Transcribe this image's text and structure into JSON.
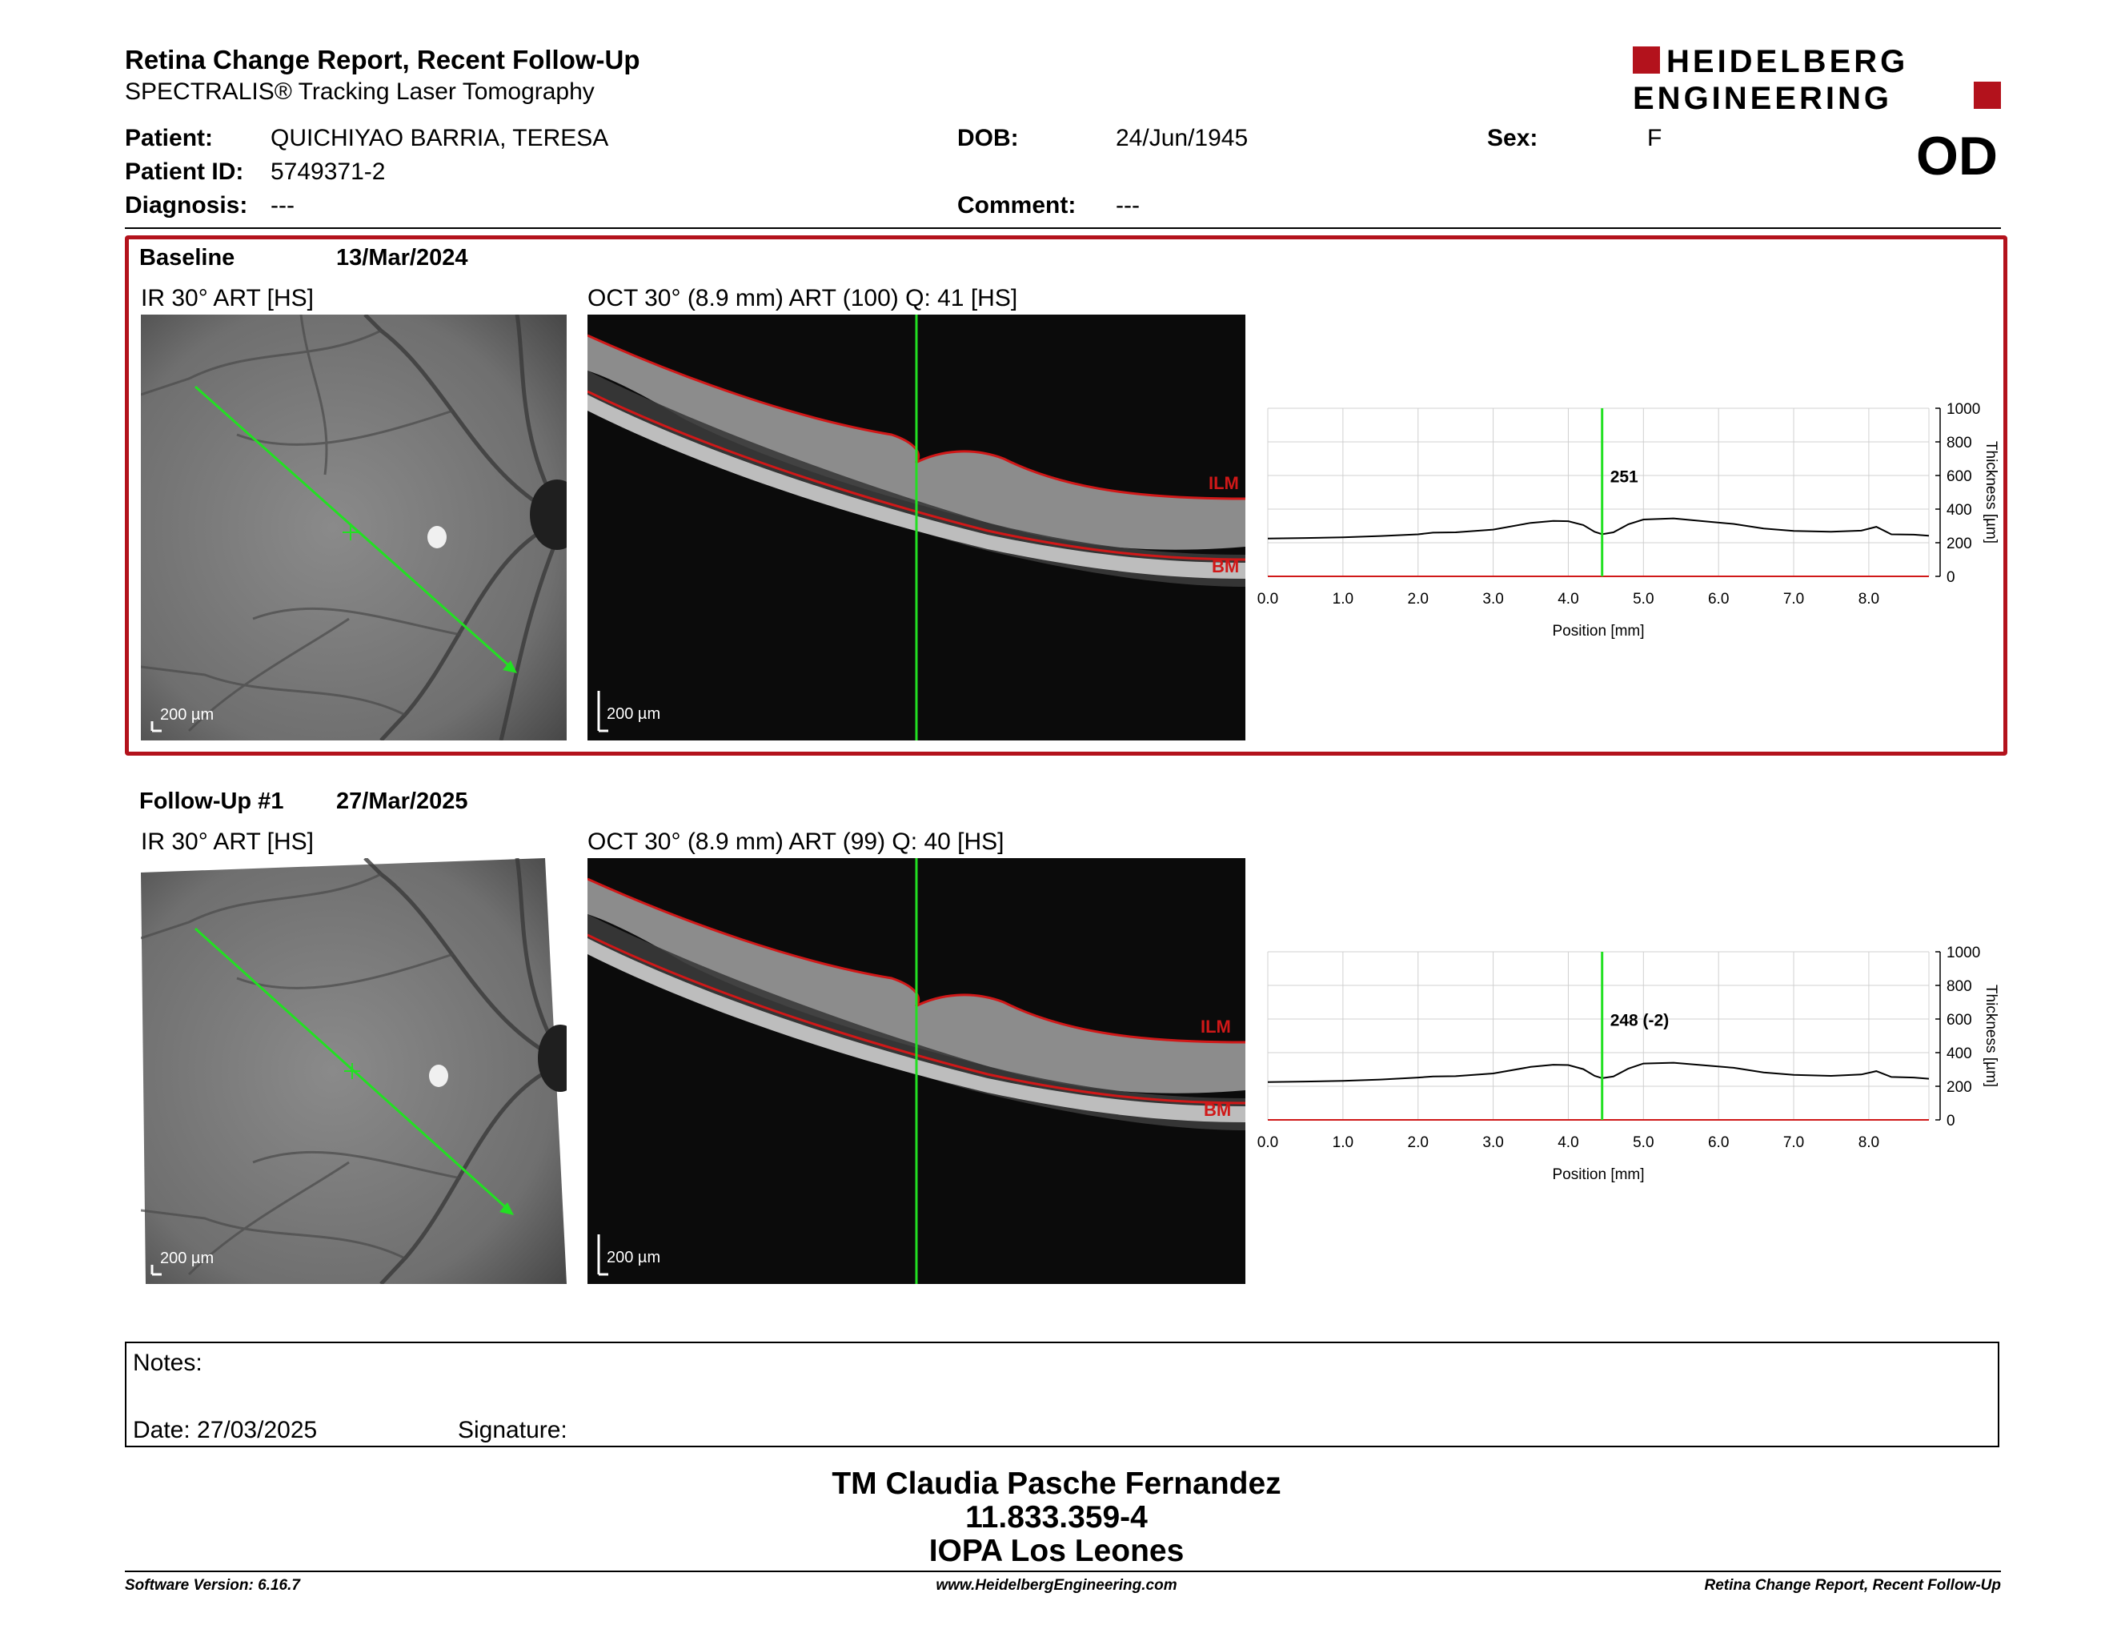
{
  "header": {
    "title": "Retina Change Report, Recent Follow-Up",
    "subtitle": "SPECTRALIS® Tracking Laser Tomography",
    "logo_line1": "HEIDELBERG",
    "logo_line2": "ENGINEERING",
    "eye": "OD"
  },
  "patient": {
    "patient_label": "Patient:",
    "patient_value": "QUICHIYAO BARRIA, TERESA",
    "id_label": "Patient ID:",
    "id_value": "5749371-2",
    "diagnosis_label": "Diagnosis:",
    "diagnosis_value": "---",
    "dob_label": "DOB:",
    "dob_value": "24/Jun/1945",
    "comment_label": "Comment:",
    "comment_value": "---",
    "sex_label": "Sex:",
    "sex_value": "F"
  },
  "exams": [
    {
      "label": "Baseline",
      "date": "13/Mar/2024",
      "ir_label": "IR 30° ART [HS]",
      "oct_label": "OCT 30° (8.9 mm) ART (100) Q: 41 [HS]",
      "scale_bar": "200 µm",
      "ilm": "ILM",
      "bm": "BM",
      "marker_value": "251"
    },
    {
      "label": "Follow-Up #1",
      "date": "27/Mar/2025",
      "ir_label": "IR 30° ART [HS]",
      "oct_label": "OCT 30° (8.9 mm) ART (99) Q: 40 [HS]",
      "scale_bar": "200 µm",
      "ilm": "ILM",
      "bm": "BM",
      "marker_value": "248 (-2)"
    }
  ],
  "chart_data": [
    {
      "type": "line",
      "xlabel": "Position [mm]",
      "ylabel": "Thickness [µm]",
      "xlim": [
        0.0,
        8.8
      ],
      "ylim": [
        0,
        1000
      ],
      "xticks": [
        "0.0",
        "1.0",
        "2.0",
        "3.0",
        "4.0",
        "5.0",
        "6.0",
        "7.0",
        "8.0"
      ],
      "yticks": [
        "0",
        "200",
        "400",
        "600",
        "800",
        "1000"
      ],
      "grid": true,
      "marker_x": 4.45,
      "marker_label": "251",
      "x": [
        0.0,
        0.5,
        1.0,
        1.5,
        2.0,
        2.2,
        2.5,
        3.0,
        3.5,
        3.8,
        4.0,
        4.2,
        4.35,
        4.45,
        4.6,
        4.8,
        5.0,
        5.4,
        5.8,
        6.2,
        6.6,
        7.0,
        7.5,
        7.9,
        8.1,
        8.3,
        8.6,
        8.8
      ],
      "y": [
        225,
        228,
        232,
        240,
        250,
        260,
        262,
        278,
        318,
        330,
        328,
        305,
        265,
        251,
        262,
        310,
        338,
        345,
        328,
        312,
        285,
        270,
        265,
        272,
        295,
        250,
        248,
        242
      ]
    },
    {
      "type": "line",
      "xlabel": "Position [mm]",
      "ylabel": "Thickness [µm]",
      "xlim": [
        0.0,
        8.8
      ],
      "ylim": [
        0,
        1000
      ],
      "xticks": [
        "0.0",
        "1.0",
        "2.0",
        "3.0",
        "4.0",
        "5.0",
        "6.0",
        "7.0",
        "8.0"
      ],
      "yticks": [
        "0",
        "200",
        "400",
        "600",
        "800",
        "1000"
      ],
      "grid": true,
      "marker_x": 4.45,
      "marker_label": "248 (-2)",
      "x": [
        0.0,
        0.5,
        1.0,
        1.5,
        2.0,
        2.2,
        2.5,
        3.0,
        3.5,
        3.8,
        4.0,
        4.2,
        4.35,
        4.45,
        4.6,
        4.8,
        5.0,
        5.4,
        5.8,
        6.2,
        6.6,
        7.0,
        7.5,
        7.9,
        8.1,
        8.3,
        8.6,
        8.8
      ],
      "y": [
        225,
        228,
        232,
        240,
        252,
        258,
        260,
        276,
        315,
        328,
        326,
        302,
        262,
        248,
        258,
        305,
        335,
        340,
        325,
        310,
        282,
        268,
        262,
        270,
        290,
        255,
        252,
        245
      ]
    }
  ],
  "notes": {
    "notes_label": "Notes:",
    "date_label": "Date: 27/03/2025",
    "signature_label": "Signature:"
  },
  "footer": {
    "line1": "TM Claudia Pasche Fernandez",
    "line2": "11.833.359-4",
    "line3": "IOPA Los Leones",
    "software": "Software Version: 6.16.7",
    "website": "www.HeidelbergEngineering.com",
    "report": "Retina Change Report, Recent Follow-Up"
  },
  "colors": {
    "brand_red": "#b3121c",
    "scan_green": "#22e022",
    "ilm_red": "#d01818"
  }
}
